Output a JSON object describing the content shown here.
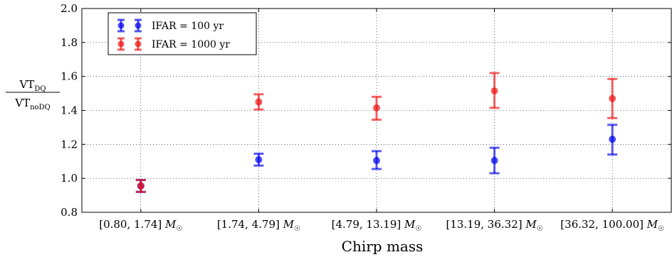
{
  "chart_data": {
    "type": "scatter",
    "xlabel": "Chirp mass",
    "ylabel": {
      "numerator": "VT",
      "numerator_sub": "DQ",
      "denominator": "VT",
      "denominator_sub": "noDQ"
    },
    "categories": [
      "[0.80, 1.74]",
      "[1.74, 4.79]",
      "[4.79, 13.19]",
      "[13.19, 36.32]",
      "[36.32, 100.00]"
    ],
    "category_unit": "M☉",
    "ylim": [
      0.8,
      2.0
    ],
    "yticks": [
      "0.8",
      "1.0",
      "1.2",
      "1.4",
      "1.6",
      "1.8",
      "2.0"
    ],
    "grid": true,
    "legend_position": "top-left",
    "series": [
      {
        "name": "IFAR = 100 yr",
        "color": "#0000ee",
        "values": [
          0.955,
          1.11,
          1.105,
          1.105,
          1.23
        ],
        "lower": [
          0.92,
          1.075,
          1.055,
          1.03,
          1.14
        ],
        "upper": [
          0.99,
          1.145,
          1.16,
          1.18,
          1.315
        ]
      },
      {
        "name": "IFAR = 1000 yr",
        "color": "#ee1111",
        "values": [
          0.955,
          1.45,
          1.415,
          1.515,
          1.47
        ],
        "lower": [
          0.92,
          1.405,
          1.345,
          1.415,
          1.355
        ],
        "upper": [
          0.99,
          1.495,
          1.48,
          1.62,
          1.585
        ]
      }
    ]
  }
}
